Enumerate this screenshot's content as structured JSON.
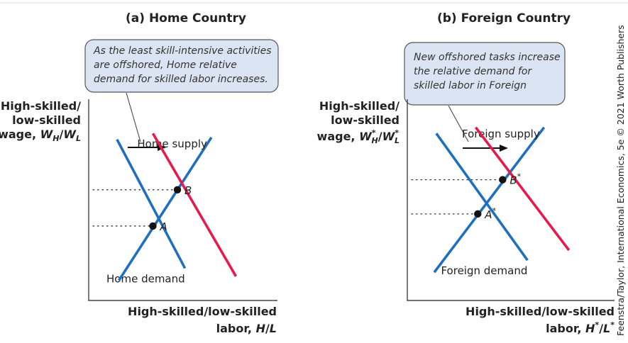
{
  "chart_data": [
    {
      "type": "line",
      "title": "(a) Home Country",
      "ylabel": [
        "High-skilled/",
        "low-skilled",
        "wage, W_H/W_L"
      ],
      "xlabel": [
        "High-skilled/low-skilled",
        "labor, H/L"
      ],
      "series": [
        {
          "name": "Home demand",
          "color": "#1f6fbf",
          "points": [
            [
              1.5,
              8.0
            ],
            [
              5.1,
              1.6
            ]
          ]
        },
        {
          "name": "Home supply",
          "color": "#1f6fbf",
          "points": [
            [
              1.6,
              1.0
            ],
            [
              6.5,
              8.1
            ]
          ]
        },
        {
          "name": "",
          "color": "#e8194d",
          "points": [
            [
              3.4,
              8.3
            ],
            [
              7.8,
              1.2
            ]
          ]
        }
      ],
      "equilibria": [
        {
          "label": "A",
          "x": 3.4,
          "y": 3.7
        },
        {
          "label": "B",
          "x": 4.7,
          "y": 5.5
        }
      ],
      "annotation": [
        "As the least skill-intensive activities",
        "are offshored, Home relative",
        "demand for skilled labor increases."
      ],
      "xlim": [
        0,
        10
      ],
      "ylim": [
        0,
        10
      ]
    },
    {
      "type": "line",
      "title": "(b) Foreign Country",
      "ylabel": [
        "High-skilled/",
        "low-skilled",
        "wage, W*_H/W*_L"
      ],
      "xlabel": [
        "High-skilled/low-skilled",
        "labor, H*/L*"
      ],
      "series": [
        {
          "name": "Foreign demand",
          "color": "#1f6fbf",
          "points": [
            [
              1.4,
              8.3
            ],
            [
              5.8,
              2.0
            ]
          ]
        },
        {
          "name": "Foreign supply",
          "color": "#1f6fbf",
          "points": [
            [
              1.3,
              1.4
            ],
            [
              6.6,
              8.6
            ]
          ]
        },
        {
          "name": "",
          "color": "#e8194d",
          "points": [
            [
              3.3,
              8.6
            ],
            [
              7.8,
              2.5
            ]
          ]
        }
      ],
      "equilibria": [
        {
          "label": "A*",
          "x": 3.4,
          "y": 4.3
        },
        {
          "label": "B*",
          "x": 4.6,
          "y": 6.0
        }
      ],
      "annotation": [
        "New offshored tasks increase",
        "the relative demand for",
        "skilled labor in Foreign"
      ],
      "xlim": [
        0,
        10
      ],
      "ylim": [
        0,
        10
      ]
    }
  ],
  "credit": "Feenstra/Taylor, International Economics, 5e © 2021 Worth Publishers"
}
